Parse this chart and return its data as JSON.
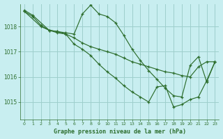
{
  "title": "Graphe pression niveau de la mer (hPa)",
  "background_color": "#c8eef0",
  "grid_color": "#9ecfcc",
  "line_color": "#2d6e2d",
  "xlim": [
    -0.5,
    23.5
  ],
  "ylim": [
    1014.3,
    1018.9
  ],
  "yticks": [
    1015,
    1016,
    1017,
    1018
  ],
  "xticks": [
    0,
    1,
    2,
    3,
    4,
    5,
    6,
    7,
    8,
    9,
    10,
    11,
    12,
    13,
    14,
    15,
    16,
    17,
    18,
    19,
    20,
    21,
    22,
    23
  ],
  "series": [
    {
      "x": [
        0,
        1,
        3,
        4,
        5,
        6,
        7,
        8,
        9,
        10,
        11,
        12,
        13,
        14,
        15,
        16,
        17,
        18,
        19,
        20,
        21,
        22,
        23
      ],
      "y": [
        1018.65,
        1018.45,
        1017.85,
        1017.8,
        1017.75,
        1017.7,
        1018.5,
        1018.85,
        1018.5,
        1018.4,
        1018.15,
        1017.65,
        1017.1,
        1016.65,
        1016.25,
        1015.9,
        1015.55,
        1015.25,
        1015.2,
        1016.45,
        1016.8,
        1015.8,
        1016.6
      ]
    },
    {
      "x": [
        0,
        1,
        2,
        3,
        4,
        5,
        6,
        7,
        8,
        9,
        10,
        11,
        12,
        13,
        14,
        15,
        16,
        17,
        18,
        19,
        20,
        21,
        22,
        23
      ],
      "y": [
        1018.6,
        1018.4,
        1018.05,
        1017.85,
        1017.75,
        1017.7,
        1017.55,
        1017.35,
        1017.2,
        1017.1,
        1017.0,
        1016.9,
        1016.75,
        1016.6,
        1016.5,
        1016.4,
        1016.3,
        1016.2,
        1016.15,
        1016.05,
        1016.0,
        1016.4,
        1016.6,
        1016.6
      ]
    },
    {
      "x": [
        0,
        2,
        3,
        4,
        5,
        6,
        7,
        8,
        9,
        10,
        11,
        12,
        13,
        14,
        15,
        16,
        17,
        18,
        19,
        20,
        21,
        22,
        23
      ],
      "y": [
        1018.6,
        1018.0,
        1017.85,
        1017.8,
        1017.7,
        1017.3,
        1017.1,
        1016.85,
        1016.5,
        1016.2,
        1015.95,
        1015.65,
        1015.4,
        1015.2,
        1015.0,
        1015.6,
        1015.65,
        1014.8,
        1014.9,
        1015.1,
        1015.2,
        1015.85,
        1016.6
      ]
    }
  ]
}
